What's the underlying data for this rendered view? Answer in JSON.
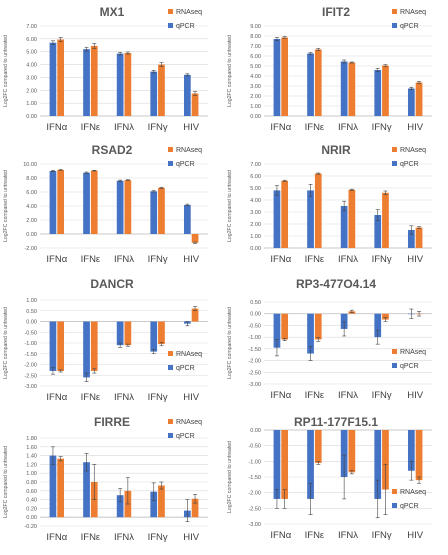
{
  "colors": {
    "rnaseq": "#ED7D31",
    "qpcr": "#4472C4",
    "grid": "#D9D9D9",
    "error": "#444444"
  },
  "chart_data": [
    {
      "type": "bar",
      "title": "MX1",
      "ylabel": "Log2FC compared to untreated",
      "categories": [
        "IFNα",
        "IFNε",
        "IFNλ",
        "IFNγ",
        "HIV"
      ],
      "ylim": [
        0,
        7
      ],
      "ytick_step": 1,
      "tick_decimals": 2,
      "series": [
        {
          "name": "qPCR",
          "values": [
            5.7,
            5.2,
            4.85,
            3.45,
            3.2
          ],
          "errors": [
            0.15,
            0.15,
            0.1,
            0.1,
            0.08
          ]
        },
        {
          "name": "RNAseq",
          "values": [
            5.95,
            5.45,
            4.9,
            4.0,
            1.75
          ],
          "errors": [
            0.15,
            0.2,
            0.08,
            0.15,
            0.15
          ]
        }
      ]
    },
    {
      "type": "bar",
      "title": "IFIT2",
      "ylabel": "Log2FC compared to untreated",
      "categories": [
        "IFNα",
        "IFNε",
        "IFNλ",
        "IFNγ",
        "HIV"
      ],
      "ylim": [
        0,
        9
      ],
      "ytick_step": 1,
      "tick_decimals": 2,
      "series": [
        {
          "name": "qPCR",
          "values": [
            7.7,
            6.25,
            5.45,
            4.6,
            2.75
          ],
          "errors": [
            0.15,
            0.1,
            0.15,
            0.15,
            0.12
          ]
        },
        {
          "name": "RNAseq",
          "values": [
            7.85,
            6.65,
            5.35,
            5.05,
            3.35
          ],
          "errors": [
            0.08,
            0.1,
            0.05,
            0.08,
            0.1
          ]
        }
      ]
    },
    {
      "type": "bar",
      "title": "RSAD2",
      "ylabel": "Log2FC compared to untreated",
      "categories": [
        "IFNα",
        "IFNε",
        "IFNλ",
        "IFNγ",
        "HIV"
      ],
      "ylim": [
        -2,
        10
      ],
      "ytick_step": 2,
      "tick_decimals": 2,
      "series": [
        {
          "name": "qPCR",
          "values": [
            9.0,
            8.75,
            7.6,
            6.1,
            4.15
          ],
          "errors": [
            0.1,
            0.1,
            0.1,
            0.1,
            0.12
          ]
        },
        {
          "name": "RNAseq",
          "values": [
            9.15,
            9.05,
            7.7,
            6.6,
            -1.25
          ],
          "errors": [
            0.05,
            0.05,
            0.05,
            0.08,
            0.1
          ]
        }
      ]
    },
    {
      "type": "bar",
      "title": "NRIR",
      "ylabel": "Log2FC compared to untreated",
      "categories": [
        "IFNα",
        "IFNε",
        "IFNλ",
        "IFNγ",
        "HIV"
      ],
      "ylim": [
        0,
        7
      ],
      "ytick_step": 1,
      "tick_decimals": 2,
      "series": [
        {
          "name": "qPCR",
          "values": [
            4.8,
            4.8,
            3.5,
            2.75,
            1.5
          ],
          "errors": [
            0.4,
            0.5,
            0.4,
            0.45,
            0.35
          ]
        },
        {
          "name": "RNAseq",
          "values": [
            5.6,
            6.2,
            4.85,
            4.6,
            1.7
          ],
          "errors": [
            0.05,
            0.05,
            0.05,
            0.15,
            0.08
          ]
        }
      ]
    },
    {
      "type": "bar",
      "title": "DANCR",
      "ylabel": "Log2FC compared to untreated",
      "categories": [
        "IFNα",
        "IFNε",
        "IFNλ",
        "IFNγ",
        "HIV"
      ],
      "ylim": [
        -3,
        1
      ],
      "ytick_step": 0.5,
      "tick_decimals": 2,
      "series": [
        {
          "name": "qPCR",
          "values": [
            -2.3,
            -2.6,
            -1.1,
            -1.4,
            -0.1
          ],
          "errors": [
            0.15,
            0.2,
            0.1,
            0.1,
            0.1
          ]
        },
        {
          "name": "RNAseq",
          "values": [
            -2.3,
            -2.3,
            -1.1,
            -1.05,
            0.6
          ],
          "errors": [
            0.05,
            0.1,
            0.05,
            0.08,
            0.1
          ]
        }
      ]
    },
    {
      "type": "bar",
      "title": "RP3-477O4.14",
      "ylabel": "Log2FC compared to untreated",
      "categories": [
        "IFNα",
        "IFNε",
        "IFNλ",
        "IFNγ",
        "HIV"
      ],
      "ylim": [
        -3,
        0.5
      ],
      "ytick_step": 0.5,
      "tick_decimals": 2,
      "series": [
        {
          "name": "qPCR",
          "values": [
            -1.45,
            -1.7,
            -0.65,
            -1.0,
            0.0
          ],
          "errors": [
            0.35,
            0.3,
            0.3,
            0.3,
            0.2
          ]
        },
        {
          "name": "RNAseq",
          "values": [
            -1.1,
            -1.1,
            0.1,
            -0.25,
            0.0
          ],
          "errors": [
            0.05,
            0.08,
            0.05,
            0.08,
            0.1
          ]
        }
      ]
    },
    {
      "type": "bar",
      "title": "FIRRE",
      "ylabel": "Log2FC compared to untreated",
      "categories": [
        "IFNα",
        "IFNε",
        "IFNλ",
        "IFNγ",
        "HIV"
      ],
      "ylim": [
        -0.2,
        1.8
      ],
      "ytick_step": 0.2,
      "tick_decimals": 2,
      "series": [
        {
          "name": "qPCR",
          "values": [
            1.4,
            1.25,
            0.5,
            0.58,
            0.15
          ],
          "errors": [
            0.2,
            0.2,
            0.15,
            0.2,
            0.25
          ]
        },
        {
          "name": "RNAseq",
          "values": [
            1.33,
            0.8,
            0.6,
            0.72,
            0.42
          ],
          "errors": [
            0.05,
            0.4,
            0.3,
            0.08,
            0.1
          ]
        }
      ]
    },
    {
      "type": "bar",
      "title": "RP11-177F15.1",
      "ylabel": "Log2FC compared to untreated",
      "categories": [
        "IFNα",
        "IFNε",
        "IFNλ",
        "IFNγ",
        "HIV"
      ],
      "ylim": [
        -3,
        0
      ],
      "ytick_step": 0.5,
      "tick_decimals": 2,
      "series": [
        {
          "name": "qPCR",
          "values": [
            -2.2,
            -2.2,
            -1.5,
            -2.2,
            -1.3
          ],
          "errors": [
            0.3,
            0.5,
            0.7,
            0.6,
            0.3
          ]
        },
        {
          "name": "RNAseq",
          "values": [
            -2.2,
            -1.05,
            -1.35,
            -1.9,
            -1.6
          ],
          "errors": [
            0.3,
            0.05,
            0.05,
            0.8,
            0.1
          ]
        }
      ]
    }
  ]
}
